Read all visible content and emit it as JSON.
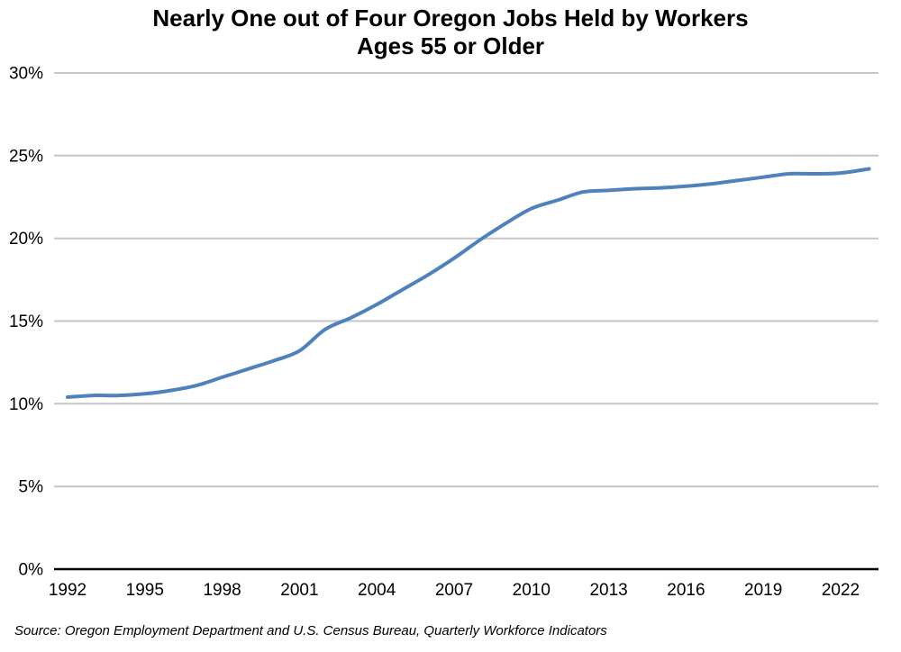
{
  "title": {
    "line1": "Nearly One out of Four Oregon Jobs Held by Workers",
    "line2": "Ages 55 or Older"
  },
  "source_note": "Source: Oregon Employment Department and U.S. Census Bureau, Quarterly Workforce Indicators",
  "chart_data": {
    "type": "line",
    "title": "Nearly One out of Four Oregon Jobs Held by Workers Ages 55 or Older",
    "x": [
      1992,
      1993,
      1994,
      1995,
      1996,
      1997,
      1998,
      1999,
      2000,
      2001,
      2002,
      2003,
      2004,
      2005,
      2006,
      2007,
      2008,
      2009,
      2010,
      2011,
      2012,
      2013,
      2014,
      2015,
      2016,
      2017,
      2018,
      2019,
      2020,
      2021,
      2022,
      2023.1
    ],
    "y": [
      10.4,
      10.5,
      10.5,
      10.6,
      10.8,
      11.1,
      11.6,
      12.1,
      12.6,
      13.2,
      14.5,
      15.2,
      16.0,
      16.9,
      17.8,
      18.8,
      19.9,
      20.9,
      21.8,
      22.3,
      22.8,
      22.9,
      23.0,
      23.05,
      23.15,
      23.3,
      23.5,
      23.7,
      23.9,
      23.9,
      23.95,
      24.2
    ],
    "unit": "%",
    "x_ticks": [
      1992,
      1995,
      1998,
      2001,
      2004,
      2007,
      2010,
      2013,
      2016,
      2019,
      2022
    ],
    "y_ticks": [
      0,
      5,
      10,
      15,
      20,
      25,
      30
    ],
    "y_tick_labels": [
      "0%",
      "5%",
      "10%",
      "15%",
      "20%",
      "25%",
      "30%"
    ],
    "xlim": [
      1991.5,
      2023.6
    ],
    "ylim": [
      0,
      30
    ],
    "grid": true,
    "legend": false,
    "line_color": "#4F81BD",
    "grid_color": "#C6C6C6",
    "axis_color": "#000000"
  }
}
